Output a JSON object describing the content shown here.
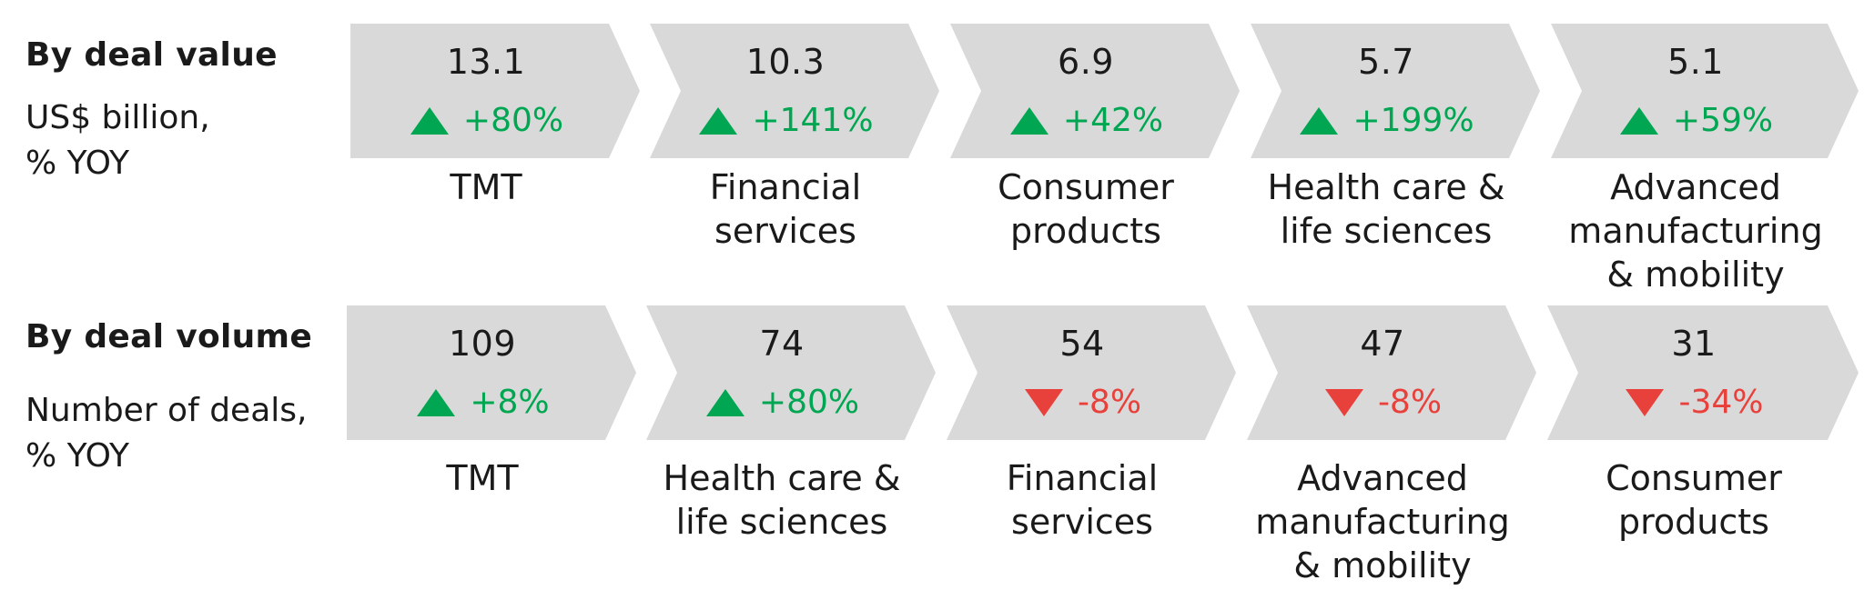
{
  "colors": {
    "chevron": "#d9d9d9",
    "up": "#00a651",
    "down": "#e8413c"
  },
  "chart_data": [
    {
      "type": "table",
      "title": "By deal value",
      "subtitle": "US$ billion,\n% YOY",
      "items": [
        {
          "value": "13.1",
          "change": "+80%",
          "direction": "up",
          "label": "TMT"
        },
        {
          "value": "10.3",
          "change": "+141%",
          "direction": "up",
          "label": "Financial\nservices"
        },
        {
          "value": "6.9",
          "change": "+42%",
          "direction": "up",
          "label": "Consumer\nproducts"
        },
        {
          "value": "5.7",
          "change": "+199%",
          "direction": "up",
          "label": "Health care &\nlife sciences"
        },
        {
          "value": "5.1",
          "change": "+59%",
          "direction": "up",
          "label": "Advanced\nmanufacturing\n& mobility"
        }
      ]
    },
    {
      "type": "table",
      "title": "By deal volume",
      "subtitle": "Number of deals,\n% YOY",
      "items": [
        {
          "value": "109",
          "change": "+8%",
          "direction": "up",
          "label": "TMT"
        },
        {
          "value": "74",
          "change": "+80%",
          "direction": "up",
          "label": "Health care &\nlife sciences"
        },
        {
          "value": "54",
          "change": "-8%",
          "direction": "down",
          "label": "Financial\nservices"
        },
        {
          "value": "47",
          "change": "-8%",
          "direction": "down",
          "label": "Advanced\nmanufacturing\n& mobility"
        },
        {
          "value": "31",
          "change": "-34%",
          "direction": "down",
          "label": "Consumer\nproducts"
        }
      ]
    }
  ]
}
